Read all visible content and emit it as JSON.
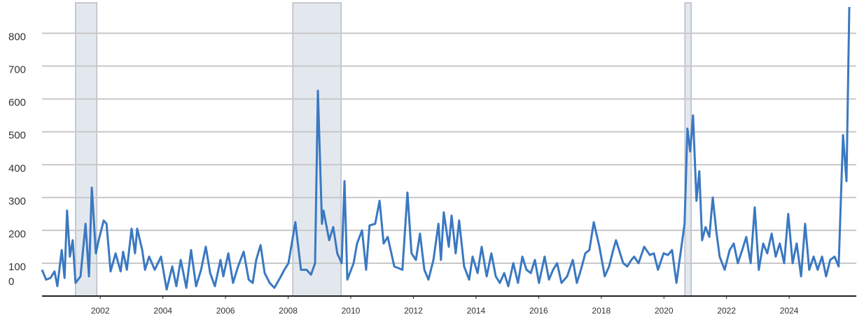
{
  "chart_data": {
    "type": "line",
    "x": [
      2000.14,
      2000.27,
      2000.41,
      2000.54,
      2000.63,
      2000.77,
      2000.86,
      2000.94,
      2001.03,
      2001.12,
      2001.21,
      2001.37,
      2001.53,
      2001.64,
      2001.73,
      2001.86,
      2001.95,
      2002.11,
      2002.2,
      2002.33,
      2002.49,
      2002.65,
      2002.73,
      2002.85,
      2003.0,
      2003.11,
      2003.18,
      2003.34,
      2003.43,
      2003.56,
      2003.74,
      2003.94,
      2004.12,
      2004.3,
      2004.43,
      2004.57,
      2004.75,
      2004.9,
      2005.06,
      2005.22,
      2005.37,
      2005.51,
      2005.66,
      2005.84,
      2005.93,
      2006.09,
      2006.24,
      2006.4,
      2006.58,
      2006.74,
      2006.87,
      2006.98,
      2007.12,
      2007.25,
      2007.41,
      2007.56,
      2007.74,
      2007.88,
      2008.01,
      2008.23,
      2008.41,
      2008.59,
      2008.73,
      2008.86,
      2008.95,
      2009.08,
      2009.13,
      2009.31,
      2009.44,
      2009.57,
      2009.71,
      2009.8,
      2009.89,
      2010.09,
      2010.2,
      2010.36,
      2010.49,
      2010.6,
      2010.78,
      2010.92,
      2011.05,
      2011.18,
      2011.39,
      2011.65,
      2011.81,
      2011.94,
      2012.08,
      2012.21,
      2012.35,
      2012.48,
      2012.64,
      2012.8,
      2012.88,
      2012.97,
      2013.13,
      2013.22,
      2013.35,
      2013.46,
      2013.62,
      2013.78,
      2013.89,
      2014.05,
      2014.18,
      2014.34,
      2014.49,
      2014.63,
      2014.76,
      2014.9,
      2015.03,
      2015.19,
      2015.34,
      2015.48,
      2015.61,
      2015.75,
      2015.88,
      2016.01,
      2016.19,
      2016.33,
      2016.46,
      2016.59,
      2016.73,
      2016.91,
      2017.09,
      2017.22,
      2017.35,
      2017.49,
      2017.62,
      2017.76,
      2017.94,
      2018.11,
      2018.25,
      2018.38,
      2018.47,
      2018.7,
      2018.83,
      2018.96,
      2019.05,
      2019.19,
      2019.37,
      2019.55,
      2019.68,
      2019.81,
      2019.99,
      2020.13,
      2020.26,
      2020.4,
      2020.53,
      2020.66,
      2020.75,
      2020.84,
      2020.93,
      2021.04,
      2021.13,
      2021.22,
      2021.33,
      2021.45,
      2021.56,
      2021.67,
      2021.78,
      2021.94,
      2022.1,
      2022.23,
      2022.36,
      2022.5,
      2022.63,
      2022.77,
      2022.9,
      2023.03,
      2023.17,
      2023.3,
      2023.44,
      2023.57,
      2023.7,
      2023.84,
      2023.97,
      2024.11,
      2024.24,
      2024.38,
      2024.51,
      2024.64,
      2024.78,
      2024.91,
      2025.05,
      2025.18,
      2025.31,
      2025.45,
      2025.58,
      2025.72,
      2025.83,
      2025.92
    ],
    "series": [
      {
        "color": "#3a78c2",
        "values": [
          80,
          50,
          55,
          75,
          30,
          140,
          55,
          260,
          120,
          170,
          40,
          60,
          220,
          60,
          330,
          130,
          170,
          230,
          220,
          75,
          130,
          75,
          135,
          80,
          205,
          130,
          205,
          140,
          80,
          120,
          80,
          120,
          20,
          90,
          30,
          110,
          25,
          140,
          30,
          80,
          150,
          70,
          30,
          110,
          60,
          130,
          40,
          90,
          135,
          50,
          40,
          110,
          155,
          70,
          40,
          25,
          55,
          80,
          100,
          225,
          80,
          80,
          65,
          100,
          625,
          220,
          260,
          170,
          210,
          130,
          100,
          350,
          50,
          100,
          160,
          200,
          80,
          215,
          220,
          290,
          160,
          180,
          90,
          80,
          315,
          130,
          110,
          190,
          80,
          50,
          110,
          220,
          110,
          255,
          150,
          245,
          130,
          230,
          90,
          50,
          120,
          70,
          150,
          60,
          130,
          60,
          40,
          70,
          30,
          100,
          40,
          120,
          80,
          70,
          110,
          40,
          120,
          50,
          80,
          100,
          40,
          60,
          110,
          40,
          80,
          130,
          140,
          225,
          150,
          60,
          90,
          140,
          170,
          100,
          90,
          110,
          120,
          100,
          150,
          125,
          130,
          80,
          130,
          125,
          140,
          40,
          130,
          220,
          510,
          440,
          550,
          290,
          380,
          170,
          210,
          180,
          300,
          200,
          120,
          80,
          140,
          160,
          100,
          140,
          180,
          100,
          270,
          80,
          160,
          130,
          190,
          120,
          160,
          100,
          250,
          100,
          160,
          60,
          220,
          80,
          120,
          80,
          120,
          60,
          110,
          120,
          90,
          490,
          350,
          880
        ]
      }
    ],
    "shaded_regions": [
      [
        2001.21,
        2001.89
      ],
      [
        2008.15,
        2009.69
      ],
      [
        2020.67,
        2020.87
      ]
    ],
    "shade_color": "#e3e8ee",
    "xlim": [
      2000.14,
      2025.92
    ],
    "xticks": [
      2002,
      2004,
      2006,
      2008,
      2010,
      2012,
      2014,
      2016,
      2018,
      2020,
      2022,
      2024
    ],
    "ylim": [
      0,
      880
    ],
    "yticks": [
      0,
      100,
      200,
      300,
      400,
      500,
      600,
      700,
      800
    ],
    "grid": true
  }
}
